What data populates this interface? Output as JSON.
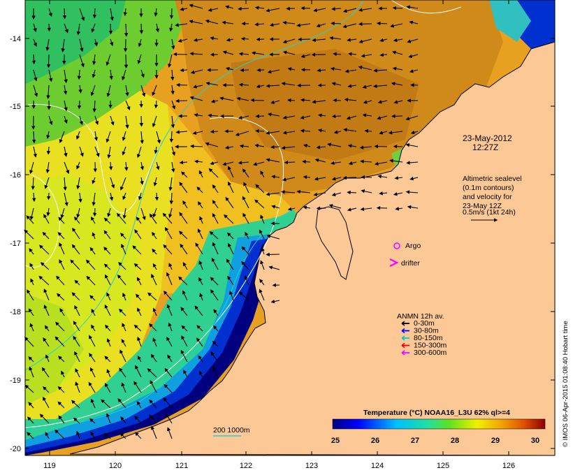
{
  "map": {
    "lon_ticks": [
      "119",
      "120",
      "121",
      "122",
      "123",
      "124",
      "125",
      "126"
    ],
    "lat_ticks": [
      "-14",
      "-15",
      "-16",
      "-17",
      "-18",
      "-19",
      "-20"
    ],
    "timestamp": {
      "line1": "23-May-2012",
      "line2": "12:27Z"
    },
    "altimetry_note": [
      "Altimetric sealevel",
      "(0.1m contours)",
      "and velocity for",
      "23-May 12Z",
      "0.5m/s (1kt 24h)"
    ],
    "markers": {
      "argo": "Argo",
      "drifter": "drifter"
    },
    "legend": {
      "title": "ANMN 12h av.",
      "items": [
        {
          "label": "0-30m",
          "color": "#000000"
        },
        {
          "label": "30-80m",
          "color": "#0000ff"
        },
        {
          "label": "80-150m",
          "color": "#00cccc"
        },
        {
          "label": "150-300m",
          "color": "#ff0000"
        },
        {
          "label": "300-600m",
          "color": "#ff00ff"
        }
      ]
    },
    "isobath_label": "200  1000m",
    "colorbar": {
      "title": "Temperature (°C) NOAA16_L3U 62% ql>=4",
      "ticks": [
        "25",
        "26",
        "27",
        "28",
        "29",
        "30"
      ]
    },
    "credit": "© IMOS 06-Apr-2015 01:08:40 Hobart time",
    "colors": {
      "land": "#fcc896",
      "cold": "#00007f",
      "warm": "#c86400",
      "contour": "#ffffff",
      "isobath": "#20d0d0"
    }
  }
}
